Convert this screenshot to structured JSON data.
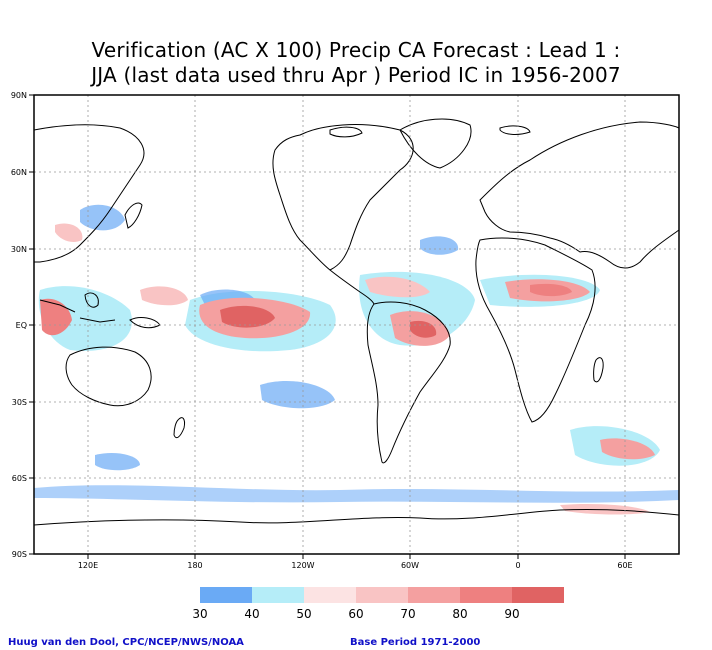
{
  "title": {
    "line1": "Verification (AC X 100) Precip CA Forecast : Lead 1 :",
    "line2": "JJA (last data used thru Apr ) Period IC in 1956-2007"
  },
  "map": {
    "lat_ticks": [
      "90N",
      "60N",
      "30N",
      "EQ",
      "30S",
      "60S",
      "90S"
    ],
    "lon_ticks": [
      "120E",
      "180",
      "120W",
      "60W",
      "0",
      "60E"
    ]
  },
  "legend": {
    "colors": [
      "#6aaaf5",
      "#b5edf8",
      "#fce3e3",
      "#f9c4c4",
      "#f4a0a0",
      "#ee8080",
      "#e06363"
    ],
    "labels": [
      "30",
      "40",
      "50",
      "60",
      "70",
      "80",
      "90"
    ]
  },
  "footer": {
    "credit": "Huug van den Dool, CPC/NCEP/NWS/NOAA",
    "base_period": "Base Period 1971-2000"
  }
}
